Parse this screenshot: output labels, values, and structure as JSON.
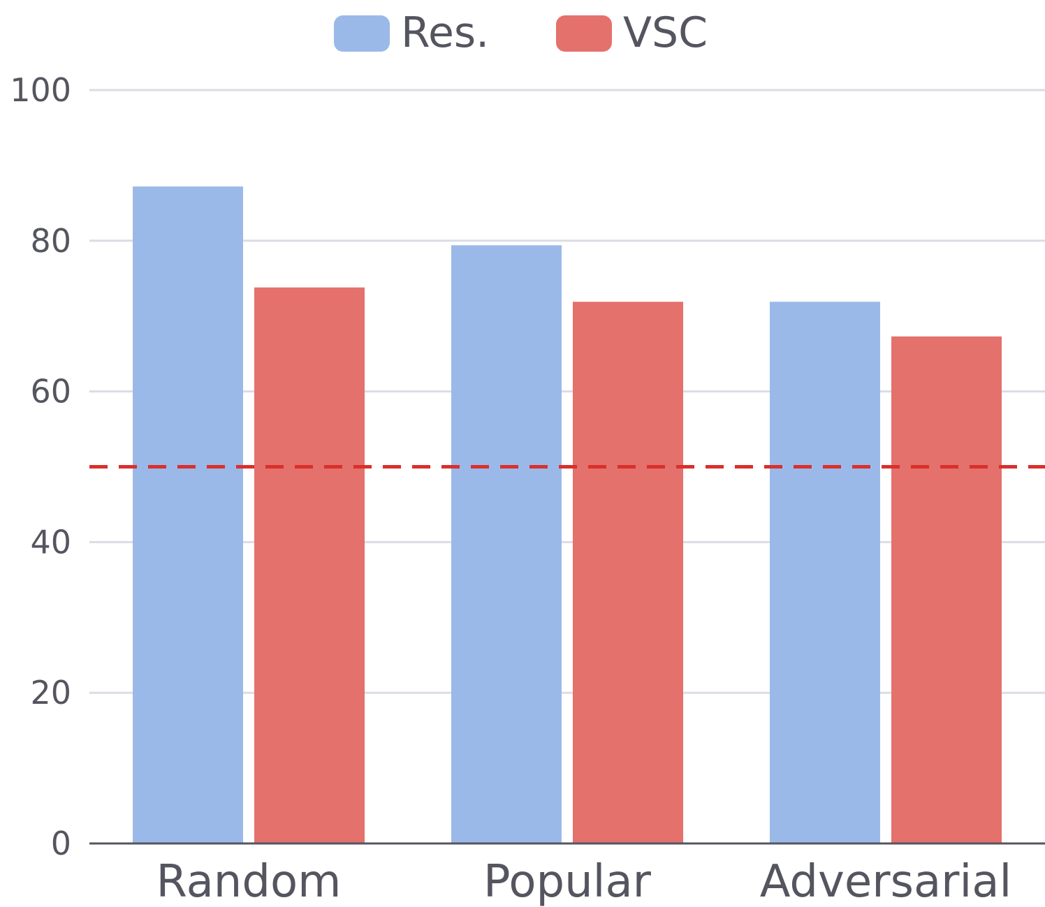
{
  "chart_data": {
    "type": "bar",
    "categories": [
      "Random",
      "Popular",
      "Adversarial"
    ],
    "series": [
      {
        "name": "Res.",
        "values": [
          87.2,
          79.4,
          71.9
        ],
        "color": "#9bb9e8"
      },
      {
        "name": "VSC",
        "values": [
          73.8,
          71.9,
          67.3
        ],
        "color": "#e4716c"
      }
    ],
    "ylim": [
      0,
      100
    ],
    "yticks": [
      0,
      20,
      40,
      60,
      80,
      100
    ],
    "reference_line": {
      "value": 50,
      "color": "#d9302c"
    },
    "grid": true,
    "legend": "top-center"
  }
}
